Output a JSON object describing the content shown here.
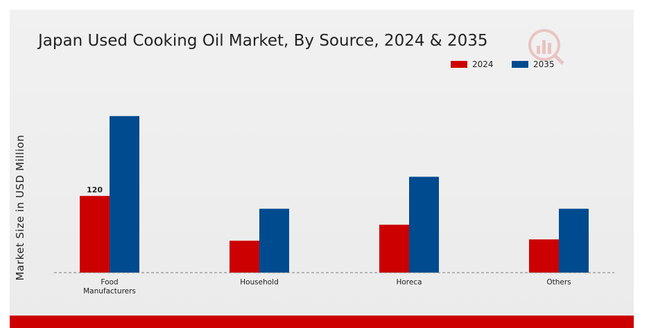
{
  "chart_data": {
    "type": "bar",
    "title": "Japan Used Cooking Oil Market, By Source, 2024 & 2035",
    "ylabel": "Market Size in USD Million",
    "xlabel": "",
    "categories": [
      [
        "Food",
        "Manufacturers"
      ],
      [
        "Household"
      ],
      [
        "Horeca"
      ],
      [
        "Others"
      ]
    ],
    "series": [
      {
        "name": "2024",
        "color": "#cc0000",
        "values": [
          120,
          50,
          75,
          52
        ]
      },
      {
        "name": "2035",
        "color": "#004a8f",
        "values": [
          245,
          100,
          150,
          100
        ]
      }
    ],
    "data_labels": [
      {
        "series": 0,
        "category": 0,
        "text": "120"
      }
    ],
    "ylim": [
      0,
      340
    ],
    "grid": false,
    "legend_position": "top-right"
  },
  "logo": {
    "icon": "magnifier-bar-chart-icon",
    "color": "#cc0000"
  }
}
